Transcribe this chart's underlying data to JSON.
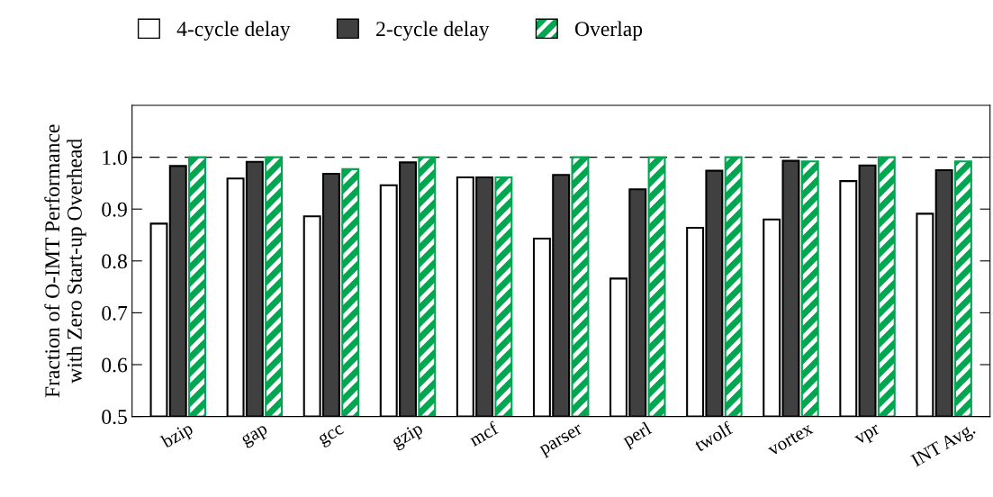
{
  "chart_data": {
    "type": "bar",
    "ylabel": "Fraction of O-IMT Performance\nwith Zero Start-up Overhead",
    "categories": [
      "bzip",
      "gap",
      "gcc",
      "gzip",
      "mcf",
      "parser",
      "perl",
      "twolf",
      "vortex",
      "vpr",
      "INT Avg."
    ],
    "series": [
      {
        "name": "4-cycle delay",
        "color": "#ffffff",
        "values": [
          0.872,
          0.959,
          0.886,
          0.946,
          0.961,
          0.843,
          0.766,
          0.864,
          0.88,
          0.954,
          0.891
        ]
      },
      {
        "name": "2-cycle delay",
        "color": "#404040",
        "values": [
          0.983,
          0.991,
          0.968,
          0.99,
          0.961,
          0.966,
          0.938,
          0.974,
          0.993,
          0.984,
          0.975
        ]
      },
      {
        "name": "Overlap",
        "color": "#00a650",
        "values": [
          1.0,
          1.0,
          0.977,
          1.0,
          0.961,
          1.0,
          1.0,
          1.0,
          0.992,
          1.0,
          0.992
        ]
      }
    ],
    "ylim": [
      0.5,
      1.1
    ],
    "yticks": [
      0.5,
      0.6,
      0.7,
      0.8,
      0.9,
      {
        "value": 1.0,
        "label": "1.0"
      }
    ],
    "ref_lines": [
      {
        "axis": "y",
        "value": 1.0,
        "line_style": "dashed",
        "color": "#000000"
      }
    ],
    "grid": false,
    "legend": "top"
  }
}
